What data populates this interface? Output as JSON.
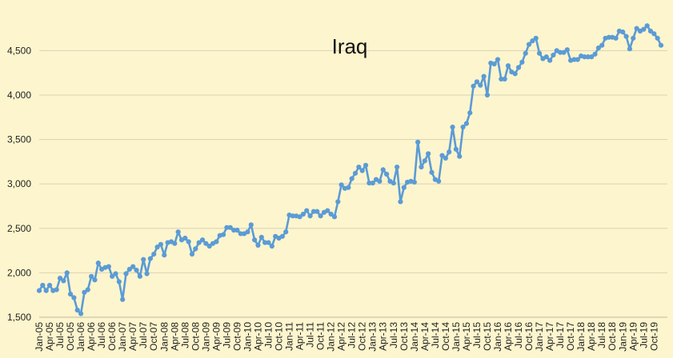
{
  "chart_data": {
    "type": "line",
    "title": "Iraq",
    "xlabel": "",
    "ylabel": "",
    "ylim": [
      1500,
      4800
    ],
    "yticks": [
      1500,
      2000,
      2500,
      3000,
      3500,
      4000,
      4500
    ],
    "ytick_labels": [
      "1,500",
      "2,000",
      "2,500",
      "3,000",
      "3,500",
      "4,000",
      "4,500"
    ],
    "x_start": "2005-01",
    "x_tick_labels": [
      "Jan-05",
      "Apr-05",
      "Jul-05",
      "Oct-05",
      "Jan-06",
      "Apr-06",
      "Jul-06",
      "Oct-06",
      "Jan-07",
      "Apr-07",
      "Jul-07",
      "Oct-07",
      "Jan-08",
      "Apr-08",
      "Jul-08",
      "Oct-08",
      "Jan-09",
      "Apr-09",
      "Jul-09",
      "Oct-09",
      "Jan-10",
      "Apr-10",
      "Jul-10",
      "Oct-10",
      "Jan-11",
      "Apr-11",
      "Jul-11",
      "Oct-11",
      "Jan-12",
      "Apr-12",
      "Jul-12",
      "Oct-12",
      "Jan-13",
      "Apr-13",
      "Jul-13",
      "Oct-13",
      "Jan-14",
      "Apr-14",
      "Jul-14",
      "Oct-14",
      "Jan-15",
      "Apr-15",
      "Jul-15",
      "Oct-15",
      "Jan-16",
      "Apr-16",
      "Jul-16",
      "Oct-16",
      "Jan-17",
      "Apr-17",
      "Jul-17",
      "Oct-17",
      "Jan-18",
      "Apr-18",
      "Jul-18",
      "Oct-18",
      "Jan-19",
      "Apr-19",
      "Jul-19",
      "Oct-19"
    ],
    "grid": true,
    "legend": "none",
    "series": [
      {
        "color": "#5b9bd5",
        "values": [
          1800,
          1860,
          1800,
          1860,
          1800,
          1810,
          1940,
          1910,
          2000,
          1760,
          1720,
          1580,
          1540,
          1780,
          1810,
          1960,
          1920,
          2110,
          2040,
          2060,
          2070,
          1960,
          1990,
          1900,
          1700,
          1990,
          2040,
          2070,
          2030,
          1960,
          2150,
          1990,
          2160,
          2210,
          2290,
          2320,
          2200,
          2340,
          2350,
          2330,
          2460,
          2370,
          2390,
          2350,
          2210,
          2270,
          2340,
          2370,
          2330,
          2300,
          2330,
          2350,
          2420,
          2430,
          2510,
          2510,
          2480,
          2480,
          2440,
          2440,
          2460,
          2540,
          2370,
          2310,
          2400,
          2340,
          2340,
          2300,
          2410,
          2390,
          2410,
          2460,
          2650,
          2640,
          2640,
          2630,
          2660,
          2700,
          2640,
          2690,
          2690,
          2640,
          2680,
          2700,
          2660,
          2630,
          2800,
          2990,
          2950,
          2960,
          3060,
          3120,
          3190,
          3150,
          3210,
          3010,
          3010,
          3050,
          3030,
          3160,
          3110,
          3030,
          3010,
          3190,
          2800,
          2960,
          3020,
          3030,
          3020,
          3470,
          3190,
          3260,
          3340,
          3130,
          3050,
          3030,
          3320,
          3290,
          3360,
          3640,
          3390,
          3310,
          3640,
          3680,
          3800,
          4100,
          4150,
          4110,
          4210,
          4000,
          4360,
          4350,
          4400,
          4180,
          4180,
          4330,
          4260,
          4240,
          4310,
          4370,
          4470,
          4570,
          4610,
          4640,
          4470,
          4410,
          4430,
          4390,
          4450,
          4500,
          4480,
          4480,
          4510,
          4390,
          4400,
          4400,
          4440,
          4430,
          4430,
          4430,
          4460,
          4530,
          4560,
          4640,
          4650,
          4650,
          4640,
          4720,
          4710,
          4660,
          4520,
          4640,
          4750,
          4720,
          4740,
          4780,
          4720,
          4690,
          4640,
          4560
        ]
      }
    ]
  }
}
